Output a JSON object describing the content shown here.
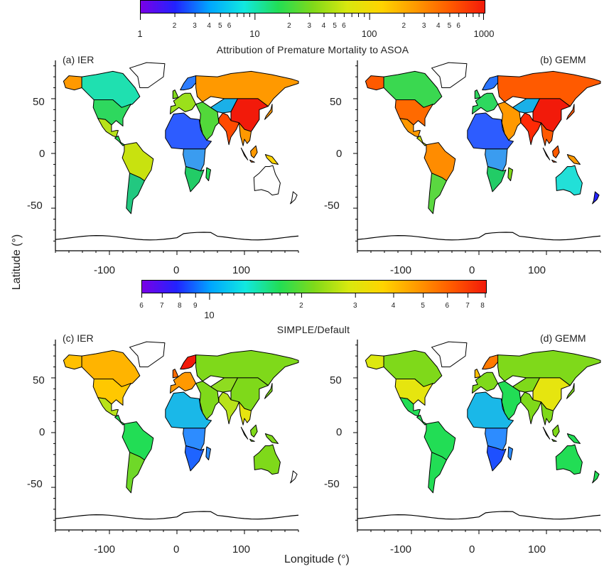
{
  "colorbar_top": {
    "scale": "log",
    "range": [
      1,
      1000
    ],
    "major_labels": [
      "1",
      "10",
      "100",
      "1000"
    ],
    "minor_labels": [
      "2",
      "3",
      "4",
      "5",
      "6",
      "2",
      "3",
      "4",
      "5",
      "6",
      "2",
      "3",
      "4",
      "5",
      "6"
    ],
    "title": "Attribution of Premature Mortality to ASOA"
  },
  "colorbar_mid": {
    "scale": "log",
    "range": [
      0.6,
      8
    ],
    "left_labels": [
      "6",
      "7",
      "8",
      "9"
    ],
    "major_label": "10",
    "right_labels": [
      "2",
      "3",
      "4",
      "5",
      "6",
      "7",
      "8"
    ],
    "title": "SIMPLE/Default"
  },
  "panels": [
    {
      "label": "(a) IER",
      "label_side": "left"
    },
    {
      "label": "(b) GEMM",
      "label_side": "right"
    },
    {
      "label": "(c) IER",
      "label_side": "left"
    },
    {
      "label": "(d) GEMM",
      "label_side": "right"
    }
  ],
  "axes": {
    "y_ticks": [
      "50",
      "0",
      "-50"
    ],
    "x_ticks": [
      "-100",
      "0",
      "100"
    ],
    "ylabel": "Latitude (°)",
    "xlabel": "Longitude (°)"
  },
  "colors": {
    "rainbow": [
      "#7a00e6",
      "#2222ff",
      "#00a6ff",
      "#11e8e0",
      "#22dd55",
      "#7fd91a",
      "#d8e80f",
      "#ffd400",
      "#ff9900",
      "#ff5a00",
      "#f21a0a"
    ]
  }
}
